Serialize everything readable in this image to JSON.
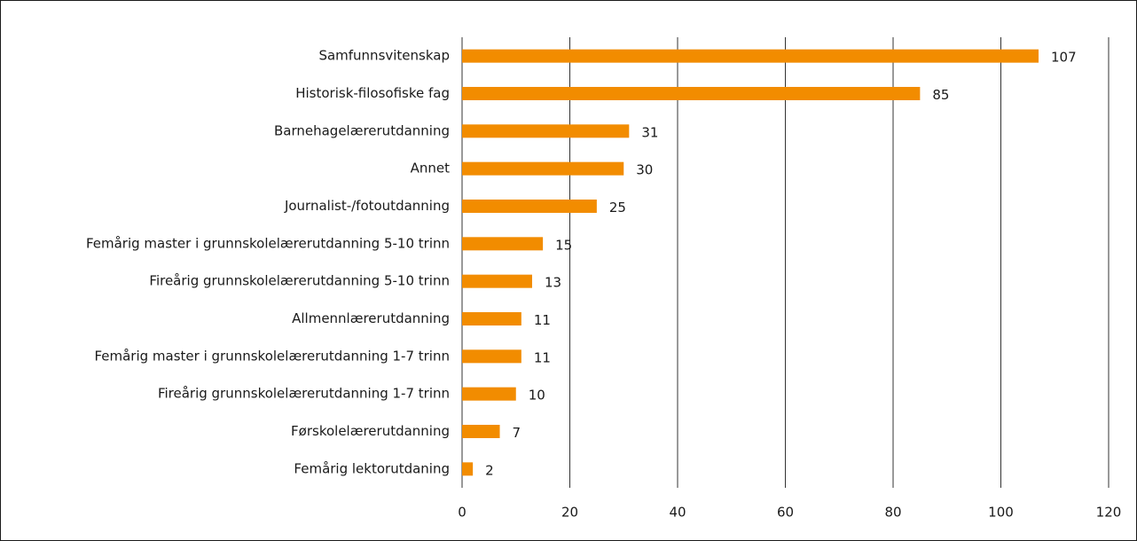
{
  "chart_data": {
    "type": "bar",
    "orientation": "horizontal",
    "categories": [
      "Samfunnsvitenskap",
      "Historisk-filosofiske fag",
      "Barnehagelærerutdanning",
      "Annet",
      "Journalist-/fotoutdanning",
      "Femårig master i grunnskolelærerutdanning 5-10 trinn",
      "Fireårig grunnskolelærerutdanning 5-10 trinn",
      "Allmennlærerutdanning",
      "Femårig master i grunnskolelærerutdanning 1-7 trinn",
      "Fireårig grunnskolelærerutdanning 1-7 trinn",
      "Førskolelærerutdanning",
      "Femårig lektorutdaning"
    ],
    "values": [
      107,
      85,
      31,
      30,
      25,
      15,
      13,
      11,
      11,
      10,
      7,
      2
    ],
    "color": "#f28c00",
    "xlim": [
      0,
      120
    ],
    "xticks": [
      0,
      20,
      40,
      60,
      80,
      100,
      120
    ],
    "grid": true
  }
}
